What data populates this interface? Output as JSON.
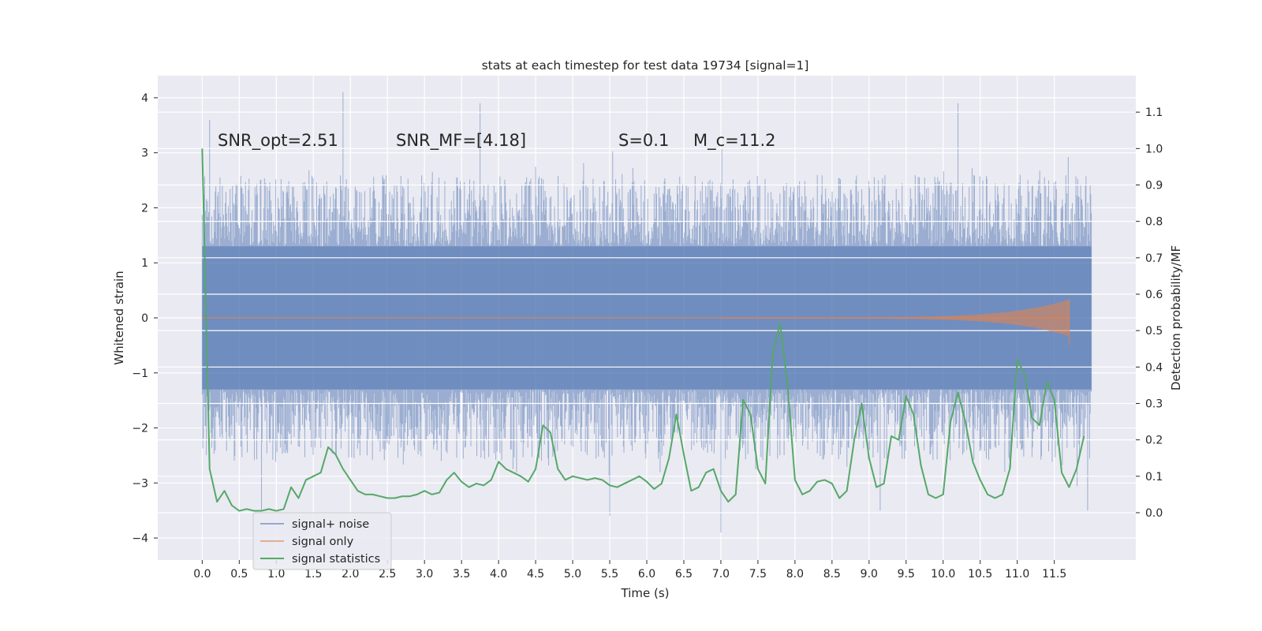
{
  "chart_data": {
    "type": "line",
    "title": "stats at each timestep for test data 19734 [signal=1]",
    "xlabel": "Time (s)",
    "ylabel": "Whitened strain",
    "y2label": "Detection probability/MF",
    "xlim": [
      -0.6,
      12.6
    ],
    "ylim": [
      -4.4,
      4.4
    ],
    "y2lim": [
      -0.13,
      1.2
    ],
    "xticks": [
      "0.0",
      "0.5",
      "1.0",
      "1.5",
      "2.0",
      "2.5",
      "3.0",
      "3.5",
      "4.0",
      "4.5",
      "5.0",
      "5.5",
      "6.0",
      "6.5",
      "7.0",
      "7.5",
      "8.0",
      "8.5",
      "9.0",
      "9.5",
      "10.0",
      "10.5",
      "11.0",
      "11.5"
    ],
    "yticks": [
      "4",
      "3",
      "2",
      "1",
      "0",
      "−1",
      "−2",
      "−3",
      "−4"
    ],
    "y2ticks": [
      "1.1",
      "1.0",
      "0.9",
      "0.8",
      "0.7",
      "0.6",
      "0.5",
      "0.4",
      "0.3",
      "0.2",
      "0.1",
      "0.0"
    ],
    "grid": true,
    "legend_position": "lower-left",
    "annotations": [
      {
        "text": "SNR_opt=2.51"
      },
      {
        "text": "SNR_MF=[4.18]"
      },
      {
        "text": "S=0.1"
      },
      {
        "text": "M_c=11.2"
      }
    ],
    "series": [
      {
        "name": "signal+ noise",
        "color": "#4c72b0",
        "axis": "left",
        "t_end": 12.0,
        "envelope": {
          "upper": 2.6,
          "lower": -2.6,
          "dense_band": [
            -1.3,
            1.3
          ]
        },
        "peaks": [
          [
            0.1,
            3.6
          ],
          [
            1.9,
            4.1
          ],
          [
            3.75,
            3.9
          ],
          [
            10.2,
            3.9
          ],
          [
            0.8,
            -3.5
          ],
          [
            5.5,
            -3.6
          ],
          [
            7.0,
            -3.9
          ],
          [
            9.15,
            -3.5
          ],
          [
            11.95,
            -3.5
          ]
        ]
      },
      {
        "name": "signal only",
        "color": "#dd8452",
        "axis": "left",
        "t_merger": 11.7,
        "peak_amplitude": 0.32
      },
      {
        "name": "signal statistics",
        "color": "#55a868",
        "axis": "right",
        "x": [
          0.0,
          0.1,
          0.2,
          0.3,
          0.4,
          0.5,
          0.6,
          0.7,
          0.8,
          0.9,
          1.0,
          1.1,
          1.2,
          1.3,
          1.4,
          1.5,
          1.6,
          1.7,
          1.8,
          1.9,
          2.0,
          2.1,
          2.2,
          2.3,
          2.4,
          2.5,
          2.6,
          2.7,
          2.8,
          2.9,
          3.0,
          3.1,
          3.2,
          3.3,
          3.4,
          3.5,
          3.6,
          3.7,
          3.8,
          3.9,
          4.0,
          4.1,
          4.2,
          4.3,
          4.4,
          4.5,
          4.6,
          4.7,
          4.8,
          4.9,
          5.0,
          5.1,
          5.2,
          5.3,
          5.4,
          5.5,
          5.6,
          5.7,
          5.8,
          5.9,
          6.0,
          6.1,
          6.2,
          6.3,
          6.4,
          6.5,
          6.6,
          6.7,
          6.8,
          6.9,
          7.0,
          7.1,
          7.2,
          7.3,
          7.4,
          7.5,
          7.6,
          7.7,
          7.8,
          7.9,
          8.0,
          8.1,
          8.2,
          8.3,
          8.4,
          8.5,
          8.6,
          8.7,
          8.8,
          8.9,
          9.0,
          9.1,
          9.2,
          9.3,
          9.4,
          9.5,
          9.6,
          9.7,
          9.8,
          9.9,
          10.0,
          10.1,
          10.2,
          10.3,
          10.4,
          10.5,
          10.6,
          10.7,
          10.8,
          10.9,
          11.0,
          11.1,
          11.2,
          11.3,
          11.4,
          11.5,
          11.6,
          11.7,
          11.8,
          11.9
        ],
        "y": [
          1.0,
          0.12,
          0.03,
          0.06,
          0.02,
          0.005,
          0.01,
          0.005,
          0.005,
          0.01,
          0.005,
          0.01,
          0.07,
          0.04,
          0.09,
          0.1,
          0.11,
          0.18,
          0.16,
          0.12,
          0.09,
          0.06,
          0.05,
          0.05,
          0.045,
          0.04,
          0.04,
          0.045,
          0.045,
          0.05,
          0.06,
          0.05,
          0.055,
          0.09,
          0.11,
          0.085,
          0.07,
          0.08,
          0.075,
          0.09,
          0.14,
          0.12,
          0.11,
          0.1,
          0.085,
          0.12,
          0.24,
          0.22,
          0.12,
          0.09,
          0.1,
          0.095,
          0.09,
          0.095,
          0.09,
          0.075,
          0.07,
          0.08,
          0.09,
          0.1,
          0.085,
          0.065,
          0.08,
          0.15,
          0.27,
          0.16,
          0.06,
          0.07,
          0.11,
          0.12,
          0.06,
          0.03,
          0.05,
          0.31,
          0.27,
          0.12,
          0.08,
          0.44,
          0.52,
          0.35,
          0.09,
          0.05,
          0.06,
          0.085,
          0.09,
          0.08,
          0.04,
          0.06,
          0.2,
          0.3,
          0.15,
          0.07,
          0.08,
          0.21,
          0.2,
          0.32,
          0.27,
          0.13,
          0.05,
          0.04,
          0.05,
          0.25,
          0.33,
          0.25,
          0.14,
          0.09,
          0.05,
          0.04,
          0.05,
          0.12,
          0.42,
          0.38,
          0.26,
          0.24,
          0.36,
          0.31,
          0.11,
          0.07,
          0.12,
          0.21
        ]
      }
    ]
  }
}
